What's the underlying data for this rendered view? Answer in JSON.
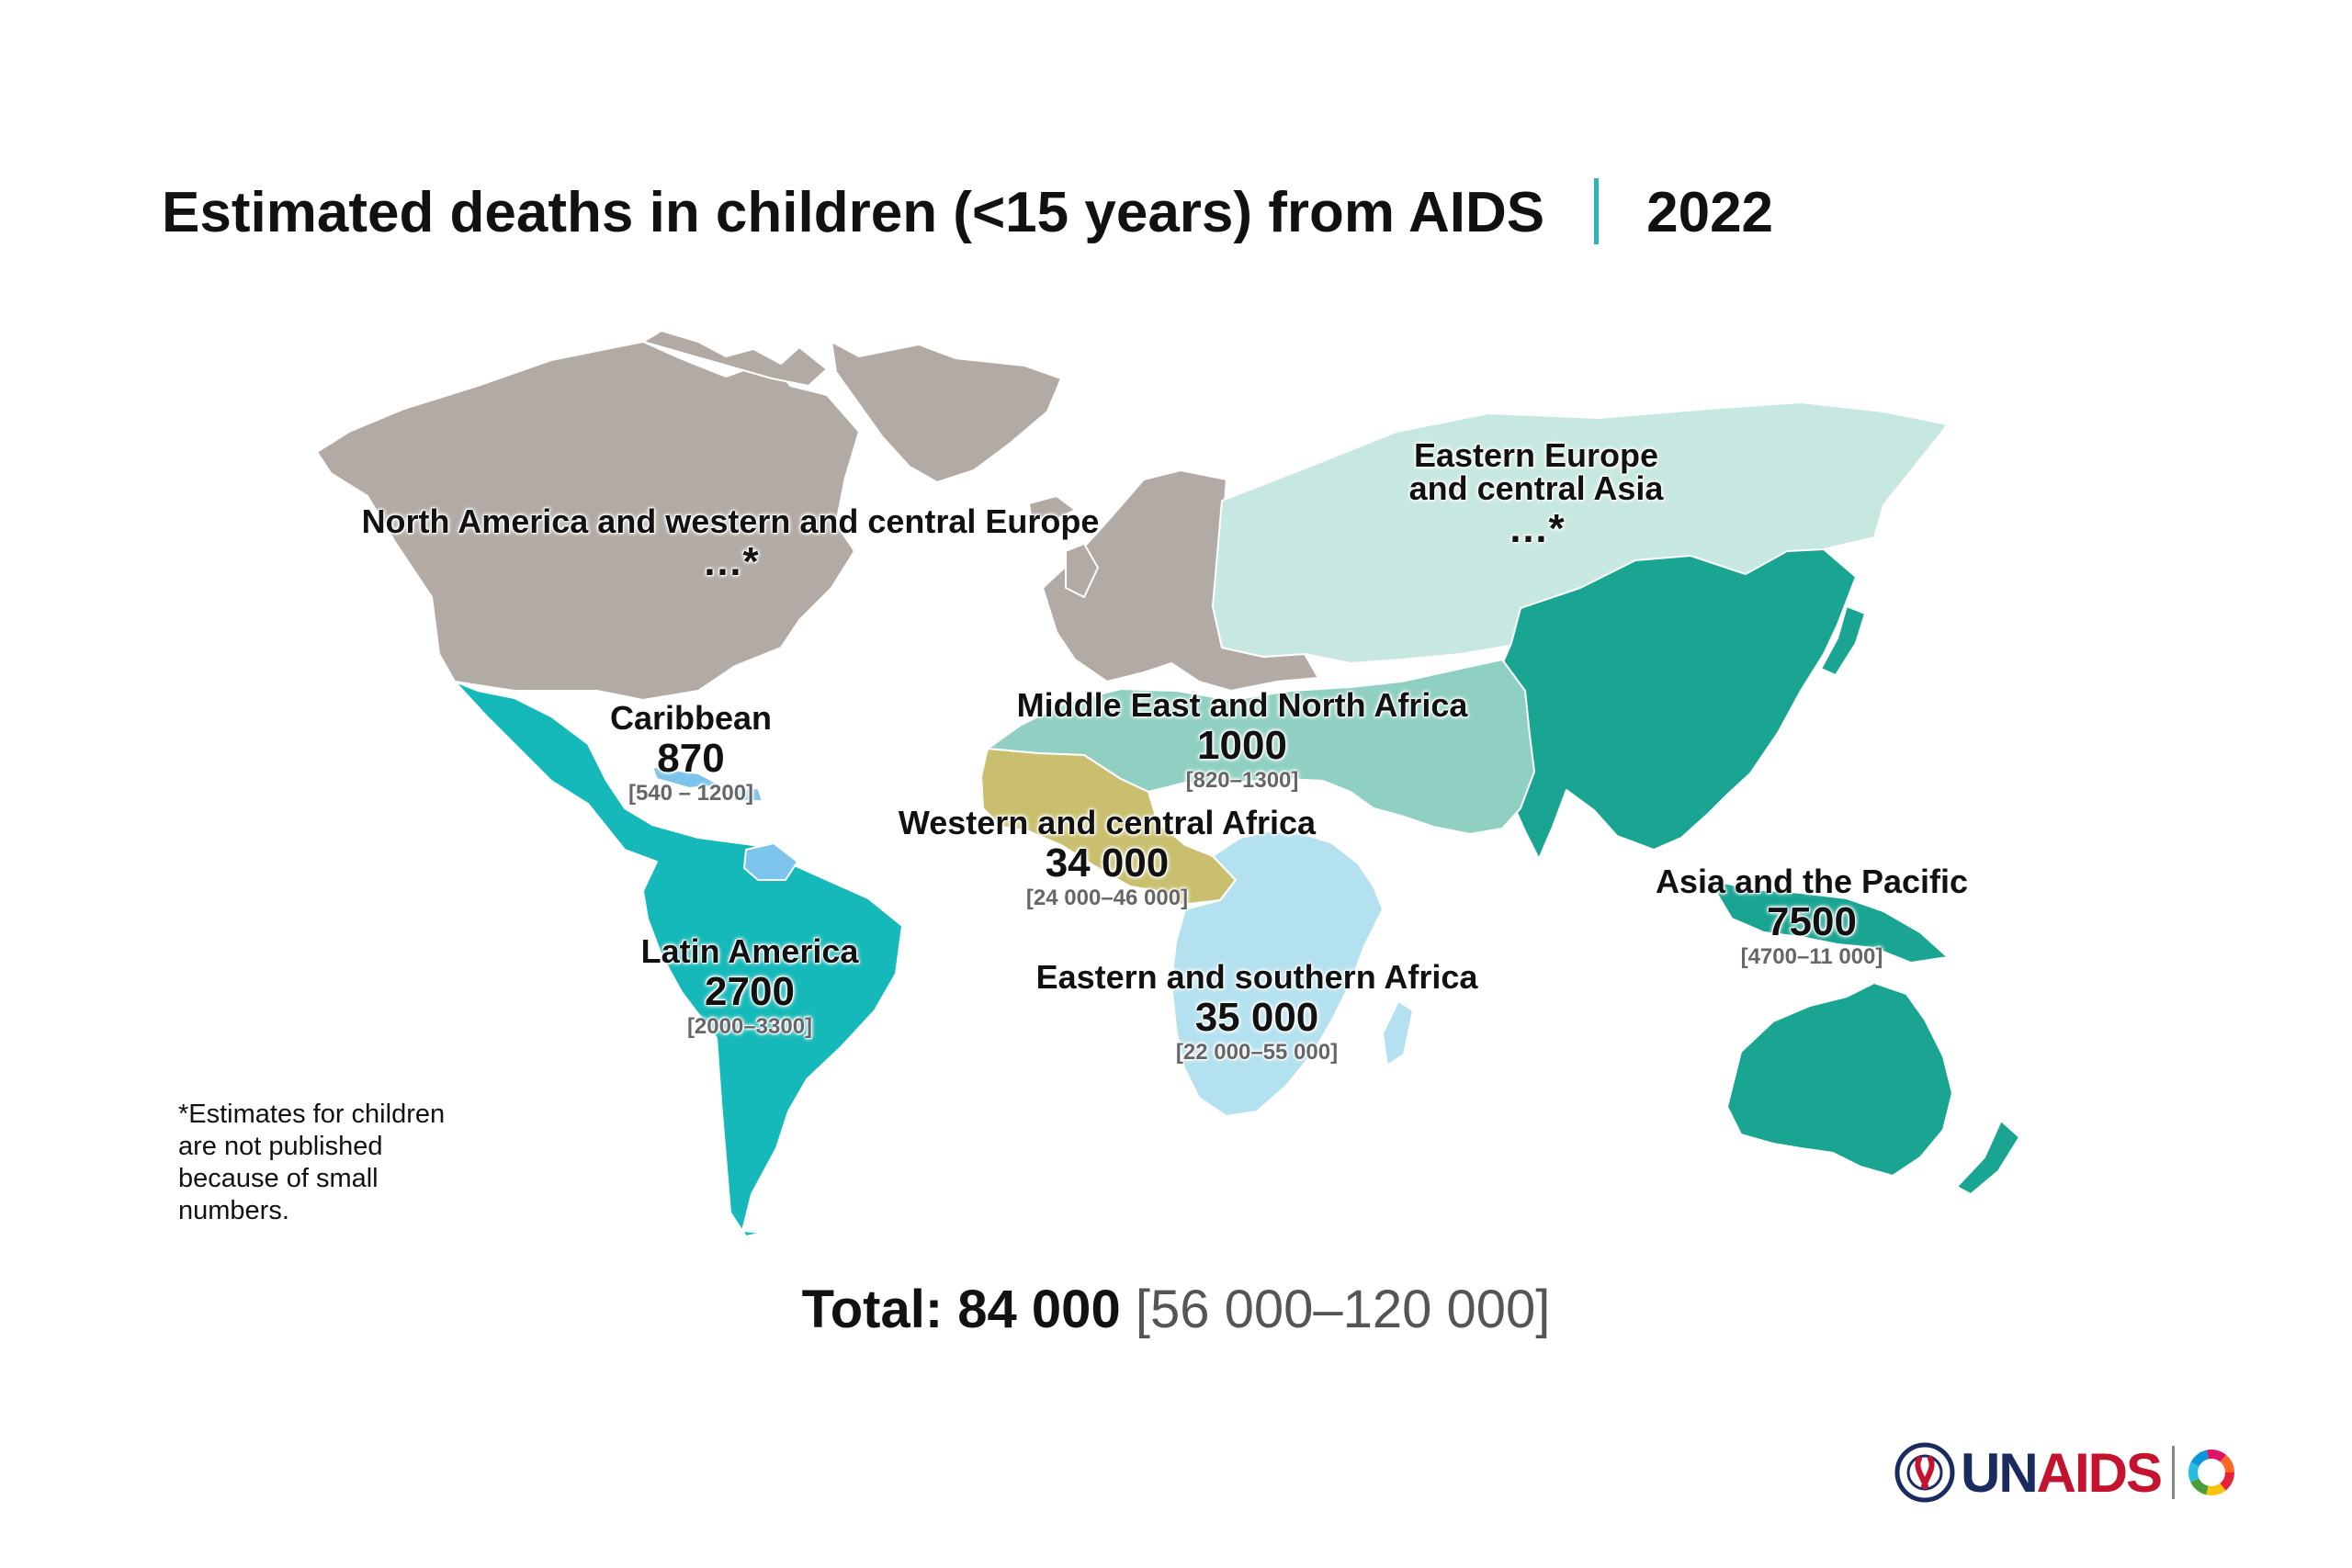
{
  "header": {
    "title": "Estimated deaths in children (<15 years) from AIDS",
    "year": "2022"
  },
  "colors": {
    "north_america_western_central_europe": "#b2aaa4",
    "eastern_europe_central_asia": "#c6e8e0",
    "middle_east_north_africa": "#8fd0c2",
    "asia_pacific": "#1aa593",
    "latin_america": "#16b9b9",
    "caribbean": "#7cc4ec",
    "western_central_africa": "#c9bf6e",
    "eastern_southern_africa": "#b4e1ef",
    "accent": "#2bb6b6"
  },
  "regions": {
    "na_wce": {
      "name": "North America and western and central Europe",
      "value": "…*"
    },
    "eeca": {
      "name_line1": "Eastern Europe",
      "name_line2": "and central Asia",
      "value": "…*"
    },
    "caribbean": {
      "name": "Caribbean",
      "value": "870",
      "range": "[540 – 1200]"
    },
    "mena": {
      "name": "Middle East and North Africa",
      "value": "1000",
      "range": "[820–1300]"
    },
    "wca": {
      "name": "Western and central Africa",
      "value": "34 000",
      "range": "[24 000–46 000]"
    },
    "latin_america": {
      "name": "Latin America",
      "value": "2700",
      "range": "[2000–3300]"
    },
    "esa": {
      "name": "Eastern and southern Africa",
      "value": "35 000",
      "range": "[22 000–55 000]"
    },
    "asia_pacific": {
      "name": "Asia and the Pacific",
      "value": "7500",
      "range": "[4700–11 000]"
    }
  },
  "footnote": {
    "line1": "*Estimates for children",
    "line2": "are not published",
    "line3": "because of small",
    "line4": "numbers."
  },
  "total": {
    "label": "Total:",
    "value": "84 000",
    "range": "[56 000–120 000]"
  },
  "logo": {
    "emblem_icon": "un-emblem-icon",
    "un": "UN",
    "aids": "AIDS",
    "sdg_icon": "sdg-wheel-icon"
  }
}
